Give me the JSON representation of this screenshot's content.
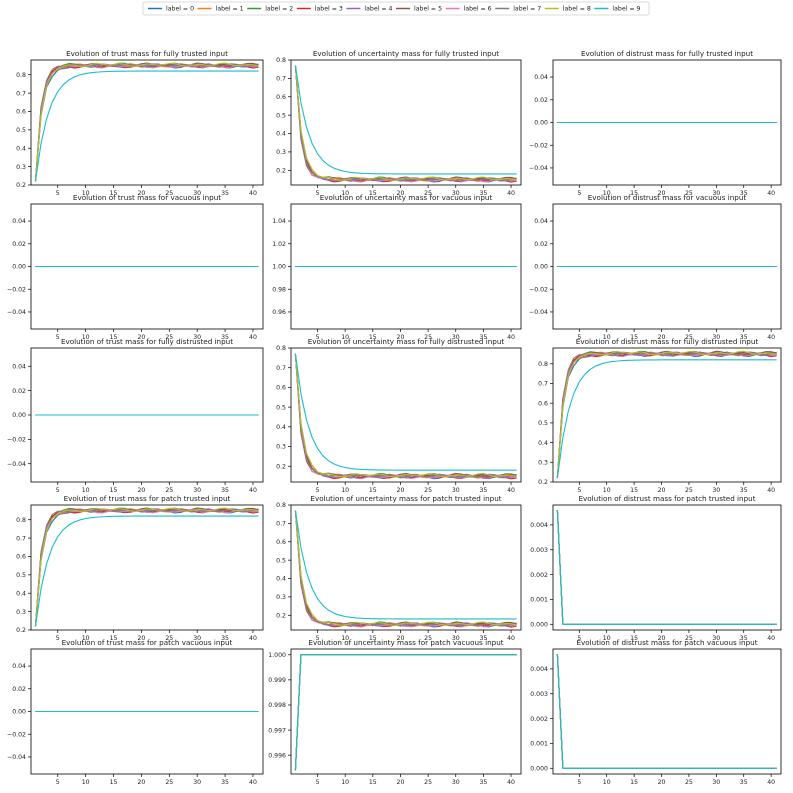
{
  "legend": {
    "placement": "top-center",
    "entries": [
      {
        "label": "label = 0",
        "color": "#1f77b4"
      },
      {
        "label": "label = 1",
        "color": "#ff7f0e"
      },
      {
        "label": "label = 2",
        "color": "#2ca02c"
      },
      {
        "label": "label = 3",
        "color": "#d62728"
      },
      {
        "label": "label = 4",
        "color": "#9467bd"
      },
      {
        "label": "label = 5",
        "color": "#8c564b"
      },
      {
        "label": "label = 6",
        "color": "#e377c2"
      },
      {
        "label": "label = 7",
        "color": "#7f7f7f"
      },
      {
        "label": "label = 8",
        "color": "#bcbd22"
      },
      {
        "label": "label = 9",
        "color": "#17becf"
      }
    ]
  },
  "chart_data": [
    {
      "type": "line",
      "title": "Evolution of trust mass for fully trusted input",
      "profile": "rise",
      "x": [
        1,
        41
      ],
      "y_start": 0.22,
      "y_plateau": 0.85,
      "y_plateau_label9": 0.82,
      "xlim": [
        1,
        41
      ],
      "xticks": [
        5,
        10,
        15,
        20,
        25,
        30,
        35,
        40
      ],
      "ylim": [
        0.2,
        0.88
      ],
      "yticks": [
        "0.2",
        "0.3",
        "0.4",
        "0.5",
        "0.6",
        "0.7",
        "0.8"
      ],
      "ytick_values": [
        0.2,
        0.3,
        0.4,
        0.5,
        0.6,
        0.7,
        0.8
      ]
    },
    {
      "type": "line",
      "title": "Evolution of uncertainty mass for fully trusted input",
      "profile": "decay",
      "x": [
        1,
        41
      ],
      "y_start": 0.77,
      "y_plateau": 0.15,
      "y_plateau_label9": 0.18,
      "xlim": [
        1,
        41
      ],
      "xticks": [
        5,
        10,
        15,
        20,
        25,
        30,
        35,
        40
      ],
      "ylim": [
        0.12,
        0.8
      ],
      "yticks": [
        "0.2",
        "0.3",
        "0.4",
        "0.5",
        "0.6",
        "0.7",
        "0.8"
      ],
      "ytick_values": [
        0.2,
        0.3,
        0.4,
        0.5,
        0.6,
        0.7,
        0.8
      ]
    },
    {
      "type": "line",
      "title": "Evolution of distrust mass for fully trusted input",
      "profile": "flat",
      "x": [
        1,
        41
      ],
      "y_value": 0.0,
      "xlim": [
        1,
        41
      ],
      "xticks": [
        5,
        10,
        15,
        20,
        25,
        30,
        35,
        40
      ],
      "ylim": [
        -0.055,
        0.055
      ],
      "yticks": [
        "0.04",
        "0.02",
        "0.00",
        "−0.02",
        "−0.04"
      ],
      "ytick_values": [
        0.04,
        0.02,
        0.0,
        -0.02,
        -0.04
      ]
    },
    {
      "type": "line",
      "title": "Evolution of trust mass for vacuous input",
      "profile": "flat",
      "x": [
        1,
        41
      ],
      "y_value": 0.0,
      "xlim": [
        1,
        41
      ],
      "xticks": [
        5,
        10,
        15,
        20,
        25,
        30,
        35,
        40
      ],
      "ylim": [
        -0.055,
        0.055
      ],
      "yticks": [
        "0.04",
        "0.02",
        "0.00",
        "−0.02",
        "−0.04"
      ],
      "ytick_values": [
        0.04,
        0.02,
        0.0,
        -0.02,
        -0.04
      ]
    },
    {
      "type": "line",
      "title": "Evolution of uncertainty mass for vacuous input",
      "profile": "flat",
      "x": [
        1,
        41
      ],
      "y_value": 1.0,
      "xlim": [
        1,
        41
      ],
      "xticks": [
        5,
        10,
        15,
        20,
        25,
        30,
        35,
        40
      ],
      "ylim": [
        0.945,
        1.055
      ],
      "yticks": [
        "1.04",
        "1.02",
        "1.00",
        "0.98",
        "0.96"
      ],
      "ytick_values": [
        1.04,
        1.02,
        1.0,
        0.98,
        0.96
      ]
    },
    {
      "type": "line",
      "title": "Evolution of distrust mass for vacuous input",
      "profile": "flat",
      "x": [
        1,
        41
      ],
      "y_value": 0.0,
      "xlim": [
        1,
        41
      ],
      "xticks": [
        5,
        10,
        15,
        20,
        25,
        30,
        35,
        40
      ],
      "ylim": [
        -0.055,
        0.055
      ],
      "yticks": [
        "0.04",
        "0.02",
        "0.00",
        "−0.02",
        "−0.04"
      ],
      "ytick_values": [
        0.04,
        0.02,
        0.0,
        -0.02,
        -0.04
      ]
    },
    {
      "type": "line",
      "title": "Evolution of trust mass for fully distrusted input",
      "profile": "flat",
      "x": [
        1,
        41
      ],
      "y_value": 0.0,
      "xlim": [
        1,
        41
      ],
      "xticks": [
        5,
        10,
        15,
        20,
        25,
        30,
        35,
        40
      ],
      "ylim": [
        -0.055,
        0.055
      ],
      "yticks": [
        "0.04",
        "0.02",
        "0.00",
        "−0.02",
        "−0.04"
      ],
      "ytick_values": [
        0.04,
        0.02,
        0.0,
        -0.02,
        -0.04
      ]
    },
    {
      "type": "line",
      "title": "Evolution of uncertainty mass for fully distrusted input",
      "profile": "decay",
      "x": [
        1,
        41
      ],
      "y_start": 0.77,
      "y_plateau": 0.15,
      "y_plateau_label9": 0.18,
      "xlim": [
        1,
        41
      ],
      "xticks": [
        5,
        10,
        15,
        20,
        25,
        30,
        35,
        40
      ],
      "ylim": [
        0.12,
        0.8
      ],
      "yticks": [
        "0.2",
        "0.3",
        "0.4",
        "0.5",
        "0.6",
        "0.7",
        "0.8"
      ],
      "ytick_values": [
        0.2,
        0.3,
        0.4,
        0.5,
        0.6,
        0.7,
        0.8
      ]
    },
    {
      "type": "line",
      "title": "Evolution of distrust mass for fully distrusted input",
      "profile": "rise",
      "x": [
        1,
        41
      ],
      "y_start": 0.22,
      "y_plateau": 0.85,
      "y_plateau_label9": 0.82,
      "xlim": [
        1,
        41
      ],
      "xticks": [
        5,
        10,
        15,
        20,
        25,
        30,
        35,
        40
      ],
      "ylim": [
        0.2,
        0.88
      ],
      "yticks": [
        "0.2",
        "0.3",
        "0.4",
        "0.5",
        "0.6",
        "0.7",
        "0.8"
      ],
      "ytick_values": [
        0.2,
        0.3,
        0.4,
        0.5,
        0.6,
        0.7,
        0.8
      ]
    },
    {
      "type": "line",
      "title": "Evolution of trust mass for patch trusted input",
      "profile": "rise",
      "x": [
        1,
        41
      ],
      "y_start": 0.22,
      "y_plateau": 0.85,
      "y_plateau_label9": 0.82,
      "xlim": [
        1,
        41
      ],
      "xticks": [
        5,
        10,
        15,
        20,
        25,
        30,
        35,
        40
      ],
      "ylim": [
        0.2,
        0.88
      ],
      "yticks": [
        "0.2",
        "0.3",
        "0.4",
        "0.5",
        "0.6",
        "0.7",
        "0.8"
      ],
      "ytick_values": [
        0.2,
        0.3,
        0.4,
        0.5,
        0.6,
        0.7,
        0.8
      ]
    },
    {
      "type": "line",
      "title": "Evolution of uncertainty mass for patch trusted input",
      "profile": "decay",
      "x": [
        1,
        41
      ],
      "y_start": 0.77,
      "y_plateau": 0.15,
      "y_plateau_label9": 0.18,
      "xlim": [
        1,
        41
      ],
      "xticks": [
        5,
        10,
        15,
        20,
        25,
        30,
        35,
        40
      ],
      "ylim": [
        0.12,
        0.8
      ],
      "yticks": [
        "0.2",
        "0.3",
        "0.4",
        "0.5",
        "0.6",
        "0.7",
        "0.8"
      ],
      "ytick_values": [
        0.2,
        0.3,
        0.4,
        0.5,
        0.6,
        0.7,
        0.8
      ]
    },
    {
      "type": "line",
      "title": "Evolution of distrust mass for patch trusted input",
      "profile": "drop",
      "x": [
        1,
        2,
        41
      ],
      "y": [
        0.0046,
        0.0,
        0.0
      ],
      "xlim": [
        1,
        41
      ],
      "xticks": [
        5,
        10,
        15,
        20,
        25,
        30,
        35,
        40
      ],
      "ylim": [
        -0.00023,
        0.0048
      ],
      "yticks": [
        "0.004",
        "0.003",
        "0.002",
        "0.001",
        "0.000"
      ],
      "ytick_values": [
        0.004,
        0.003,
        0.002,
        0.001,
        0.0
      ]
    },
    {
      "type": "line",
      "title": "Evolution of trust mass for patch vacuous input",
      "profile": "flat",
      "x": [
        1,
        41
      ],
      "y_value": 0.0,
      "xlim": [
        1,
        41
      ],
      "xticks": [
        5,
        10,
        15,
        20,
        25,
        30,
        35,
        40
      ],
      "ylim": [
        -0.055,
        0.055
      ],
      "yticks": [
        "0.04",
        "0.02",
        "0.00",
        "−0.02",
        "−0.04"
      ],
      "ytick_values": [
        0.04,
        0.02,
        0.0,
        -0.02,
        -0.04
      ]
    },
    {
      "type": "line",
      "title": "Evolution of uncertainty mass for patch vacuous input",
      "profile": "jump",
      "x": [
        1,
        2,
        41
      ],
      "y": [
        0.9954,
        1.0,
        1.0
      ],
      "xlim": [
        1,
        41
      ],
      "xticks": [
        5,
        10,
        15,
        20,
        25,
        30,
        35,
        40
      ],
      "ylim": [
        0.99525,
        1.00023
      ],
      "yticks": [
        "1.000",
        "0.999",
        "0.998",
        "0.997",
        "0.996"
      ],
      "ytick_values": [
        1.0,
        0.999,
        0.998,
        0.997,
        0.996
      ]
    },
    {
      "type": "line",
      "title": "Evolution of distrust mass for patch vacuous input",
      "profile": "drop",
      "x": [
        1,
        2,
        41
      ],
      "y": [
        0.0046,
        0.0,
        0.0
      ],
      "xlim": [
        1,
        41
      ],
      "xticks": [
        5,
        10,
        15,
        20,
        25,
        30,
        35,
        40
      ],
      "ylim": [
        -0.00023,
        0.0048
      ],
      "yticks": [
        "0.004",
        "0.003",
        "0.002",
        "0.001",
        "0.000"
      ],
      "ytick_values": [
        0.004,
        0.003,
        0.002,
        0.001,
        0.0
      ]
    }
  ]
}
